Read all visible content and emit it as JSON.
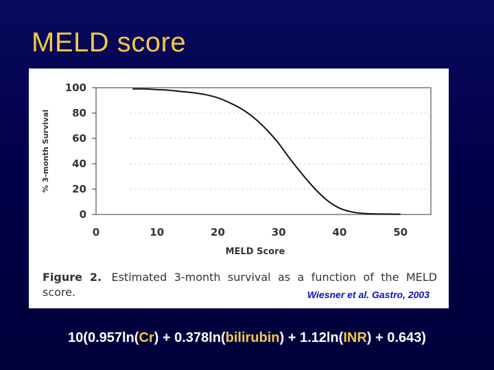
{
  "slide": {
    "title": "MELD score",
    "citation": "Wiesner et al. Gastro, 2003",
    "formula": {
      "p1": "10(0.957ln(",
      "v1": "Cr",
      "p2": ") + 0.378ln(",
      "v2": "bilirubin",
      "p3": ") +  1.12ln(",
      "v3": "INR",
      "p4": ") + 0.643)"
    }
  },
  "figure": {
    "caption_label": "Figure 2.",
    "caption_text": "Estimated 3-month survival as a function of the MELD score."
  },
  "colors": {
    "title": "#f5c842",
    "background": "#00004a",
    "citation": "#1010b8",
    "formula_variable": "#f5c842"
  },
  "chart_data": {
    "type": "line",
    "title": "",
    "xlabel": "MELD Score",
    "ylabel": "% 3-month Survival",
    "xlim": [
      0,
      55
    ],
    "ylim": [
      0,
      100
    ],
    "xticks": [
      0,
      10,
      20,
      30,
      40,
      50
    ],
    "yticks": [
      0,
      20,
      40,
      60,
      80,
      100
    ],
    "grid": "dotted horizontal",
    "series": [
      {
        "x": [
          6,
          8,
          10,
          12,
          14,
          16,
          18,
          20,
          22,
          24,
          26,
          28,
          30,
          32,
          34,
          36,
          38,
          40,
          42,
          44,
          46,
          48,
          50
        ],
        "values": [
          99,
          99,
          98.5,
          98,
          97,
          96,
          94.5,
          92,
          88,
          83,
          76,
          67,
          56,
          43,
          31,
          20,
          11,
          5,
          2,
          0.8,
          0.4,
          0.3,
          0.2
        ]
      }
    ]
  }
}
